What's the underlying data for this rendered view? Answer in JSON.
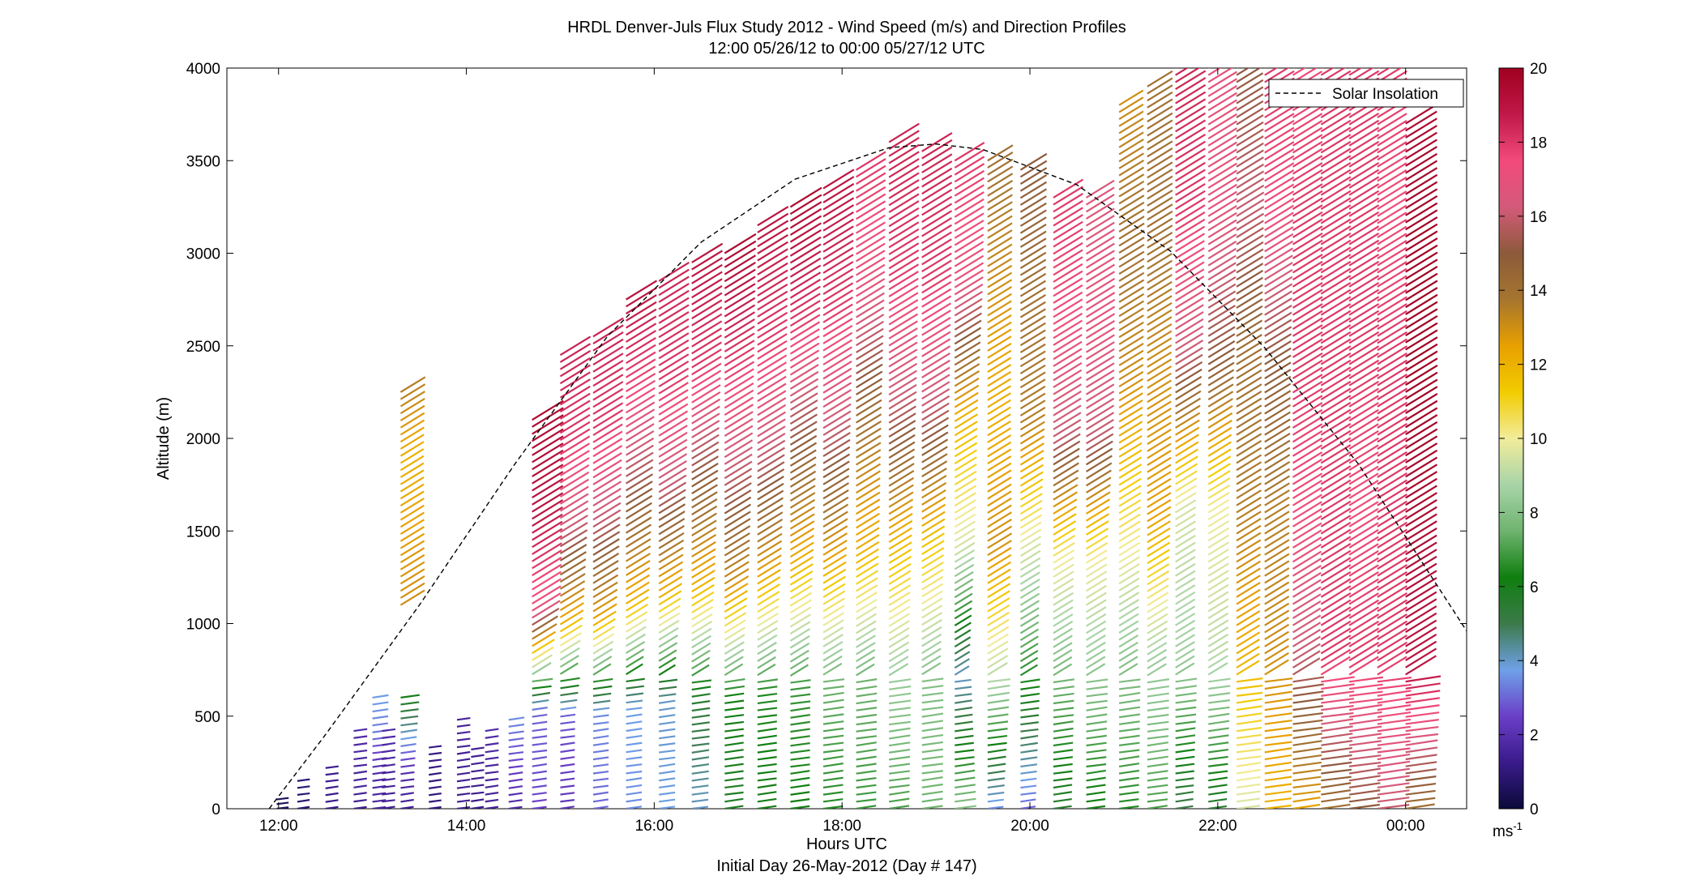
{
  "chart_data": {
    "type": "scatter",
    "title": "HRDL Denver-Juls Flux Study 2012 - Wind Speed (m/s) and Direction Profiles",
    "subtitle": "12:00 05/26/12 to 00:00 05/27/12  UTC",
    "xlabel": "Hours UTC",
    "ylabel": "Altitude (m)",
    "footer": "Initial Day 26-May-2012 (Day # 147)",
    "xlim": [
      11.45,
      24.65
    ],
    "ylim": [
      0,
      4000
    ],
    "x_ticks": [
      12,
      14,
      16,
      18,
      20,
      22,
      24
    ],
    "x_tick_labels": [
      "12:00",
      "14:00",
      "16:00",
      "18:00",
      "20:00",
      "22:00",
      "00:00"
    ],
    "y_ticks": [
      0,
      500,
      1000,
      1500,
      2000,
      2500,
      3000,
      3500,
      4000
    ],
    "legend": {
      "label": "Solar Insolation",
      "position": "top-right",
      "style": "dashed"
    },
    "colorbar": {
      "min": 0,
      "max": 20,
      "ticks": [
        0,
        2,
        4,
        6,
        8,
        10,
        12,
        14,
        16,
        18,
        20
      ],
      "units_label": "ms",
      "units_sup": "-1",
      "colors": [
        "#0b0b3a",
        "#3a1a8a",
        "#6a3fc8",
        "#6fa0e8",
        "#3c7a4a",
        "#0f7f0f",
        "#6fb36f",
        "#a8d4a8",
        "#f2ec9a",
        "#f2cc00",
        "#e8a000",
        "#a6752f",
        "#8c5a3a",
        "#d45a7a",
        "#f24a7a",
        "#c01848",
        "#a00020"
      ]
    },
    "series": [
      {
        "name": "Solar Insolation",
        "style": "dashed",
        "points": [
          [
            11.9,
            0
          ],
          [
            12.5,
            400
          ],
          [
            13.5,
            1100
          ],
          [
            14.5,
            1850
          ],
          [
            15.5,
            2550
          ],
          [
            16.5,
            3060
          ],
          [
            17.5,
            3400
          ],
          [
            18.5,
            3570
          ],
          [
            19.0,
            3590
          ],
          [
            19.5,
            3560
          ],
          [
            20.5,
            3370
          ],
          [
            21.5,
            3010
          ],
          [
            22.5,
            2490
          ],
          [
            23.5,
            1860
          ],
          [
            24.65,
            960
          ]
        ]
      }
    ],
    "profiles": [
      {
        "t": 11.98,
        "top": 50,
        "s": [
          0.5,
          0.6
        ]
      },
      {
        "t": 12.2,
        "top": 150,
        "s": [
          0.8,
          1.0
        ]
      },
      {
        "t": 12.5,
        "top": 220,
        "s": [
          1.2,
          1.4
        ]
      },
      {
        "t": 12.8,
        "top": 420,
        "s": [
          1.4,
          1.6,
          1.8
        ]
      },
      {
        "t": 13.0,
        "top": 600,
        "s": [
          1.6,
          1.8,
          3.2,
          3.8
        ]
      },
      {
        "t": 13.1,
        "top": 420,
        "s": [
          1.5,
          1.8
        ]
      },
      {
        "t": 13.3,
        "top": 600,
        "s": [
          1.4,
          2.0,
          4.0,
          6.0
        ]
      },
      {
        "t": 13.3,
        "bottom": 1100,
        "top": 2250,
        "s": [
          13.0,
          12.5,
          12.0,
          13.5
        ]
      },
      {
        "t": 13.6,
        "top": 330,
        "s": [
          1.0,
          1.2
        ]
      },
      {
        "t": 13.9,
        "top": 480,
        "s": [
          1.4,
          1.6
        ]
      },
      {
        "t": 14.05,
        "top": 320,
        "s": [
          1.2,
          1.5
        ]
      },
      {
        "t": 14.2,
        "top": 420,
        "s": [
          1.5,
          1.8
        ]
      },
      {
        "t": 14.45,
        "top": 480,
        "s": [
          1.8,
          2.5,
          3.5
        ]
      },
      {
        "t": 14.7,
        "top": 2100,
        "s": [
          2.5,
          3.0,
          17.0,
          19.0,
          19.5
        ]
      },
      {
        "t": 15.0,
        "top": 2450,
        "s": [
          2.2,
          2.8,
          12.0,
          16.0,
          18.0,
          18.5
        ]
      },
      {
        "t": 15.35,
        "top": 2550,
        "s": [
          3.0,
          3.5,
          12.5,
          16.0,
          18.0,
          18.5
        ]
      },
      {
        "t": 15.7,
        "top": 2750,
        "s": [
          3.5,
          3.8,
          12.0,
          15.0,
          17.5,
          19.0
        ]
      },
      {
        "t": 16.05,
        "top": 2850,
        "s": [
          3.8,
          4.0,
          12.0,
          16.0,
          18.0,
          18.5
        ]
      },
      {
        "t": 16.4,
        "top": 2950,
        "s": [
          4.0,
          5.5,
          12.0,
          15.0,
          18.0,
          19.0
        ]
      },
      {
        "t": 16.75,
        "top": 3000,
        "s": [
          5.8,
          6.2,
          13.0,
          16.0,
          18.0,
          19.5
        ]
      },
      {
        "t": 17.1,
        "top": 3150,
        "s": [
          6.0,
          6.5,
          12.5,
          16.0,
          18.0,
          19.0
        ]
      },
      {
        "t": 17.45,
        "top": 3250,
        "s": [
          6.2,
          6.8,
          12.0,
          15.0,
          18.0,
          19.5
        ]
      },
      {
        "t": 17.8,
        "top": 3350,
        "s": [
          6.5,
          7.5,
          12.5,
          16.0,
          18.0,
          19.0
        ]
      },
      {
        "t": 18.15,
        "top": 3450,
        "s": [
          6.8,
          7.5,
          12.0,
          14.0,
          17.0,
          18.0
        ]
      },
      {
        "t": 18.5,
        "top": 3600,
        "s": [
          7.0,
          8.5,
          12.0,
          16.0,
          18.0,
          18.5
        ]
      },
      {
        "t": 18.85,
        "top": 3550,
        "s": [
          7.5,
          8.0,
          11.5,
          16.0,
          18.0,
          18.5
        ]
      },
      {
        "t": 19.2,
        "top": 3500,
        "s": [
          8.0,
          4.0,
          9.5,
          12.0,
          17.0,
          18.0
        ]
      },
      {
        "t": 19.55,
        "top": 3500,
        "s": [
          3.5,
          9.0,
          13.0,
          12.0,
          13.0,
          14.0
        ]
      },
      {
        "t": 19.9,
        "top": 3450,
        "s": [
          3.0,
          6.5,
          9.5,
          13.5,
          14.0,
          15.0
        ]
      },
      {
        "t": 20.25,
        "top": 3300,
        "s": [
          5.5,
          7.5,
          10.0,
          16.0,
          17.5,
          18.0
        ]
      },
      {
        "t": 20.6,
        "top": 3300,
        "s": [
          6.0,
          8.0,
          10.0,
          16.0,
          17.0,
          16.5
        ]
      },
      {
        "t": 20.95,
        "top": 3800,
        "s": [
          6.5,
          8.0,
          10.5,
          13.0,
          14.0,
          13.0
        ]
      },
      {
        "t": 21.25,
        "top": 3900,
        "s": [
          7.0,
          8.5,
          12.5,
          13.0,
          14.0,
          14.0
        ]
      },
      {
        "t": 21.55,
        "top": 4000,
        "s": [
          5.0,
          8.5,
          9.5,
          16.0,
          18.0,
          18.5
        ]
      },
      {
        "t": 21.9,
        "top": 4000,
        "s": [
          5.5,
          9.0,
          10.0,
          15.0,
          17.0,
          17.0
        ]
      },
      {
        "t": 22.2,
        "top": 4000,
        "s": [
          9.5,
          12.0,
          13.5,
          14.0,
          16.0,
          15.0
        ]
      },
      {
        "t": 22.5,
        "top": 4000,
        "s": [
          12.0,
          13.0,
          13.5,
          15.0,
          17.5,
          18.0
        ]
      },
      {
        "t": 22.8,
        "top": 4000,
        "s": [
          12.5,
          16.0,
          17.5,
          18.0,
          18.0,
          17.5
        ]
      },
      {
        "t": 23.1,
        "top": 4000,
        "s": [
          14.0,
          18.0,
          18.0,
          18.0,
          18.0,
          18.0
        ]
      },
      {
        "t": 23.4,
        "top": 4000,
        "s": [
          15.0,
          18.0,
          17.5,
          18.0,
          18.0,
          18.0
        ]
      },
      {
        "t": 23.7,
        "top": 4000,
        "s": [
          16.0,
          18.0,
          18.0,
          18.0,
          17.5,
          18.0
        ]
      },
      {
        "t": 24.0,
        "top": 3700,
        "s": [
          14.0,
          19.0,
          19.5,
          20.0,
          20.0,
          19.5
        ]
      }
    ]
  }
}
